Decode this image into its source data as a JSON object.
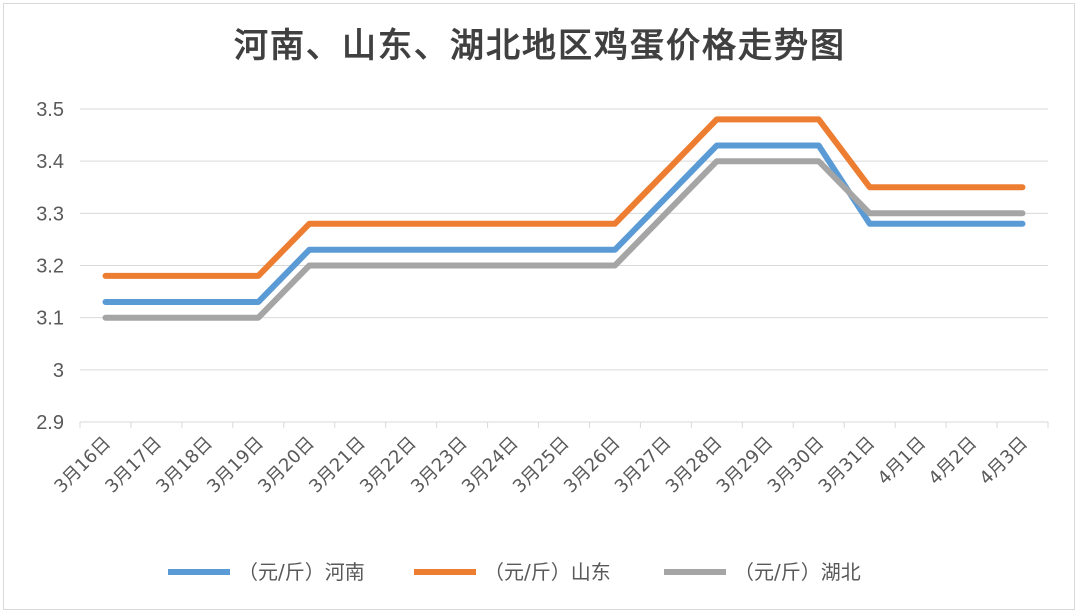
{
  "chart_data": {
    "type": "line",
    "title": "河南、山东、湖北地区鸡蛋价格走势图",
    "categories": [
      "3月16日",
      "3月17日",
      "3月18日",
      "3月19日",
      "3月20日",
      "3月21日",
      "3月22日",
      "3月23日",
      "3月24日",
      "3月25日",
      "3月26日",
      "3月27日",
      "3月28日",
      "3月29日",
      "3月30日",
      "3月31日",
      "4月1日",
      "4月2日",
      "4月3日"
    ],
    "series": [
      {
        "name": "（元/斤）河南",
        "color": "#5b9bd5",
        "values": [
          3.13,
          3.13,
          3.13,
          3.13,
          3.23,
          3.23,
          3.23,
          3.23,
          3.23,
          3.23,
          3.23,
          3.33,
          3.43,
          3.43,
          3.43,
          3.28,
          3.28,
          3.28,
          3.28
        ]
      },
      {
        "name": "（元/斤）山东",
        "color": "#ed7d31",
        "values": [
          3.18,
          3.18,
          3.18,
          3.18,
          3.28,
          3.28,
          3.28,
          3.28,
          3.28,
          3.28,
          3.28,
          3.38,
          3.48,
          3.48,
          3.48,
          3.35,
          3.35,
          3.35,
          3.35
        ]
      },
      {
        "name": "（元/斤）湖北",
        "color": "#a5a5a5",
        "values": [
          3.1,
          3.1,
          3.1,
          3.1,
          3.2,
          3.2,
          3.2,
          3.2,
          3.2,
          3.2,
          3.2,
          3.3,
          3.4,
          3.4,
          3.4,
          3.3,
          3.3,
          3.3,
          3.3
        ]
      }
    ],
    "y_ticks": [
      "2.9",
      "3",
      "3.1",
      "3.2",
      "3.3",
      "3.4",
      "3.5"
    ],
    "ylim": [
      2.9,
      3.5
    ],
    "grid": true,
    "legend_position": "bottom"
  }
}
